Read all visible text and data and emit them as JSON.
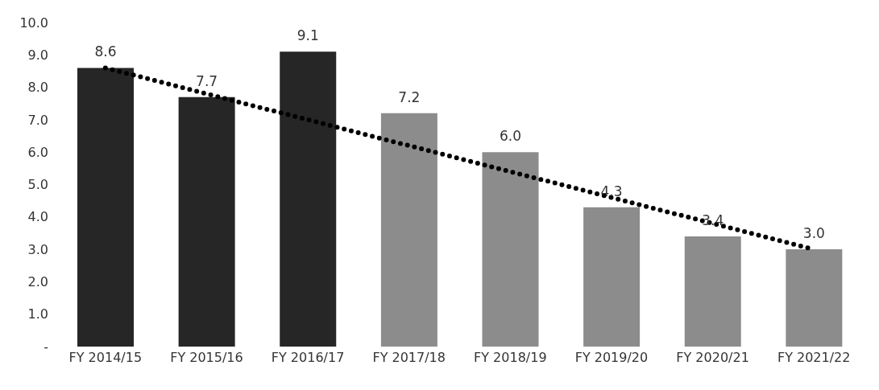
{
  "chart_data": {
    "type": "bar",
    "categories": [
      "FY 2014/15",
      "FY 2015/16",
      "FY 2016/17",
      "FY 2017/18",
      "FY 2018/19",
      "FY 2019/20",
      "FY 2020/21",
      "FY 2021/22"
    ],
    "series": [
      {
        "values": [
          8.6,
          7.7,
          9.1,
          7.2,
          6.0,
          4.3,
          3.4,
          3.0
        ],
        "colors": [
          "#262626",
          "#262626",
          "#262626",
          "#8c8c8c",
          "#8c8c8c",
          "#8c8c8c",
          "#8c8c8c",
          "#8c8c8c"
        ],
        "value_labels": [
          "8.6",
          "7.7",
          "9.1",
          "7.2",
          "6.0",
          "4.3",
          "3.4",
          "3.0"
        ]
      },
      {
        "type": "line",
        "x": [
          "FY 2014/15",
          "FY 2021/22"
        ],
        "values": [
          8.6,
          3.0
        ],
        "color": "#000000",
        "line_style": "dotted",
        "marker": "none"
      }
    ],
    "ylim": [
      0,
      10
    ],
    "yticks": [
      {
        "value": 0,
        "label": "-"
      },
      {
        "value": 1,
        "label": "1.0"
      },
      {
        "value": 2,
        "label": "2.0"
      },
      {
        "value": 3,
        "label": "3.0"
      },
      {
        "value": 4,
        "label": "4.0"
      },
      {
        "value": 5,
        "label": "5.0"
      },
      {
        "value": 6,
        "label": "6.0"
      },
      {
        "value": 7,
        "label": "7.0"
      },
      {
        "value": 8,
        "label": "8.0"
      },
      {
        "value": 9,
        "label": "9.0"
      },
      {
        "value": 10,
        "label": "10.0"
      }
    ],
    "grid": false,
    "legend": false
  }
}
